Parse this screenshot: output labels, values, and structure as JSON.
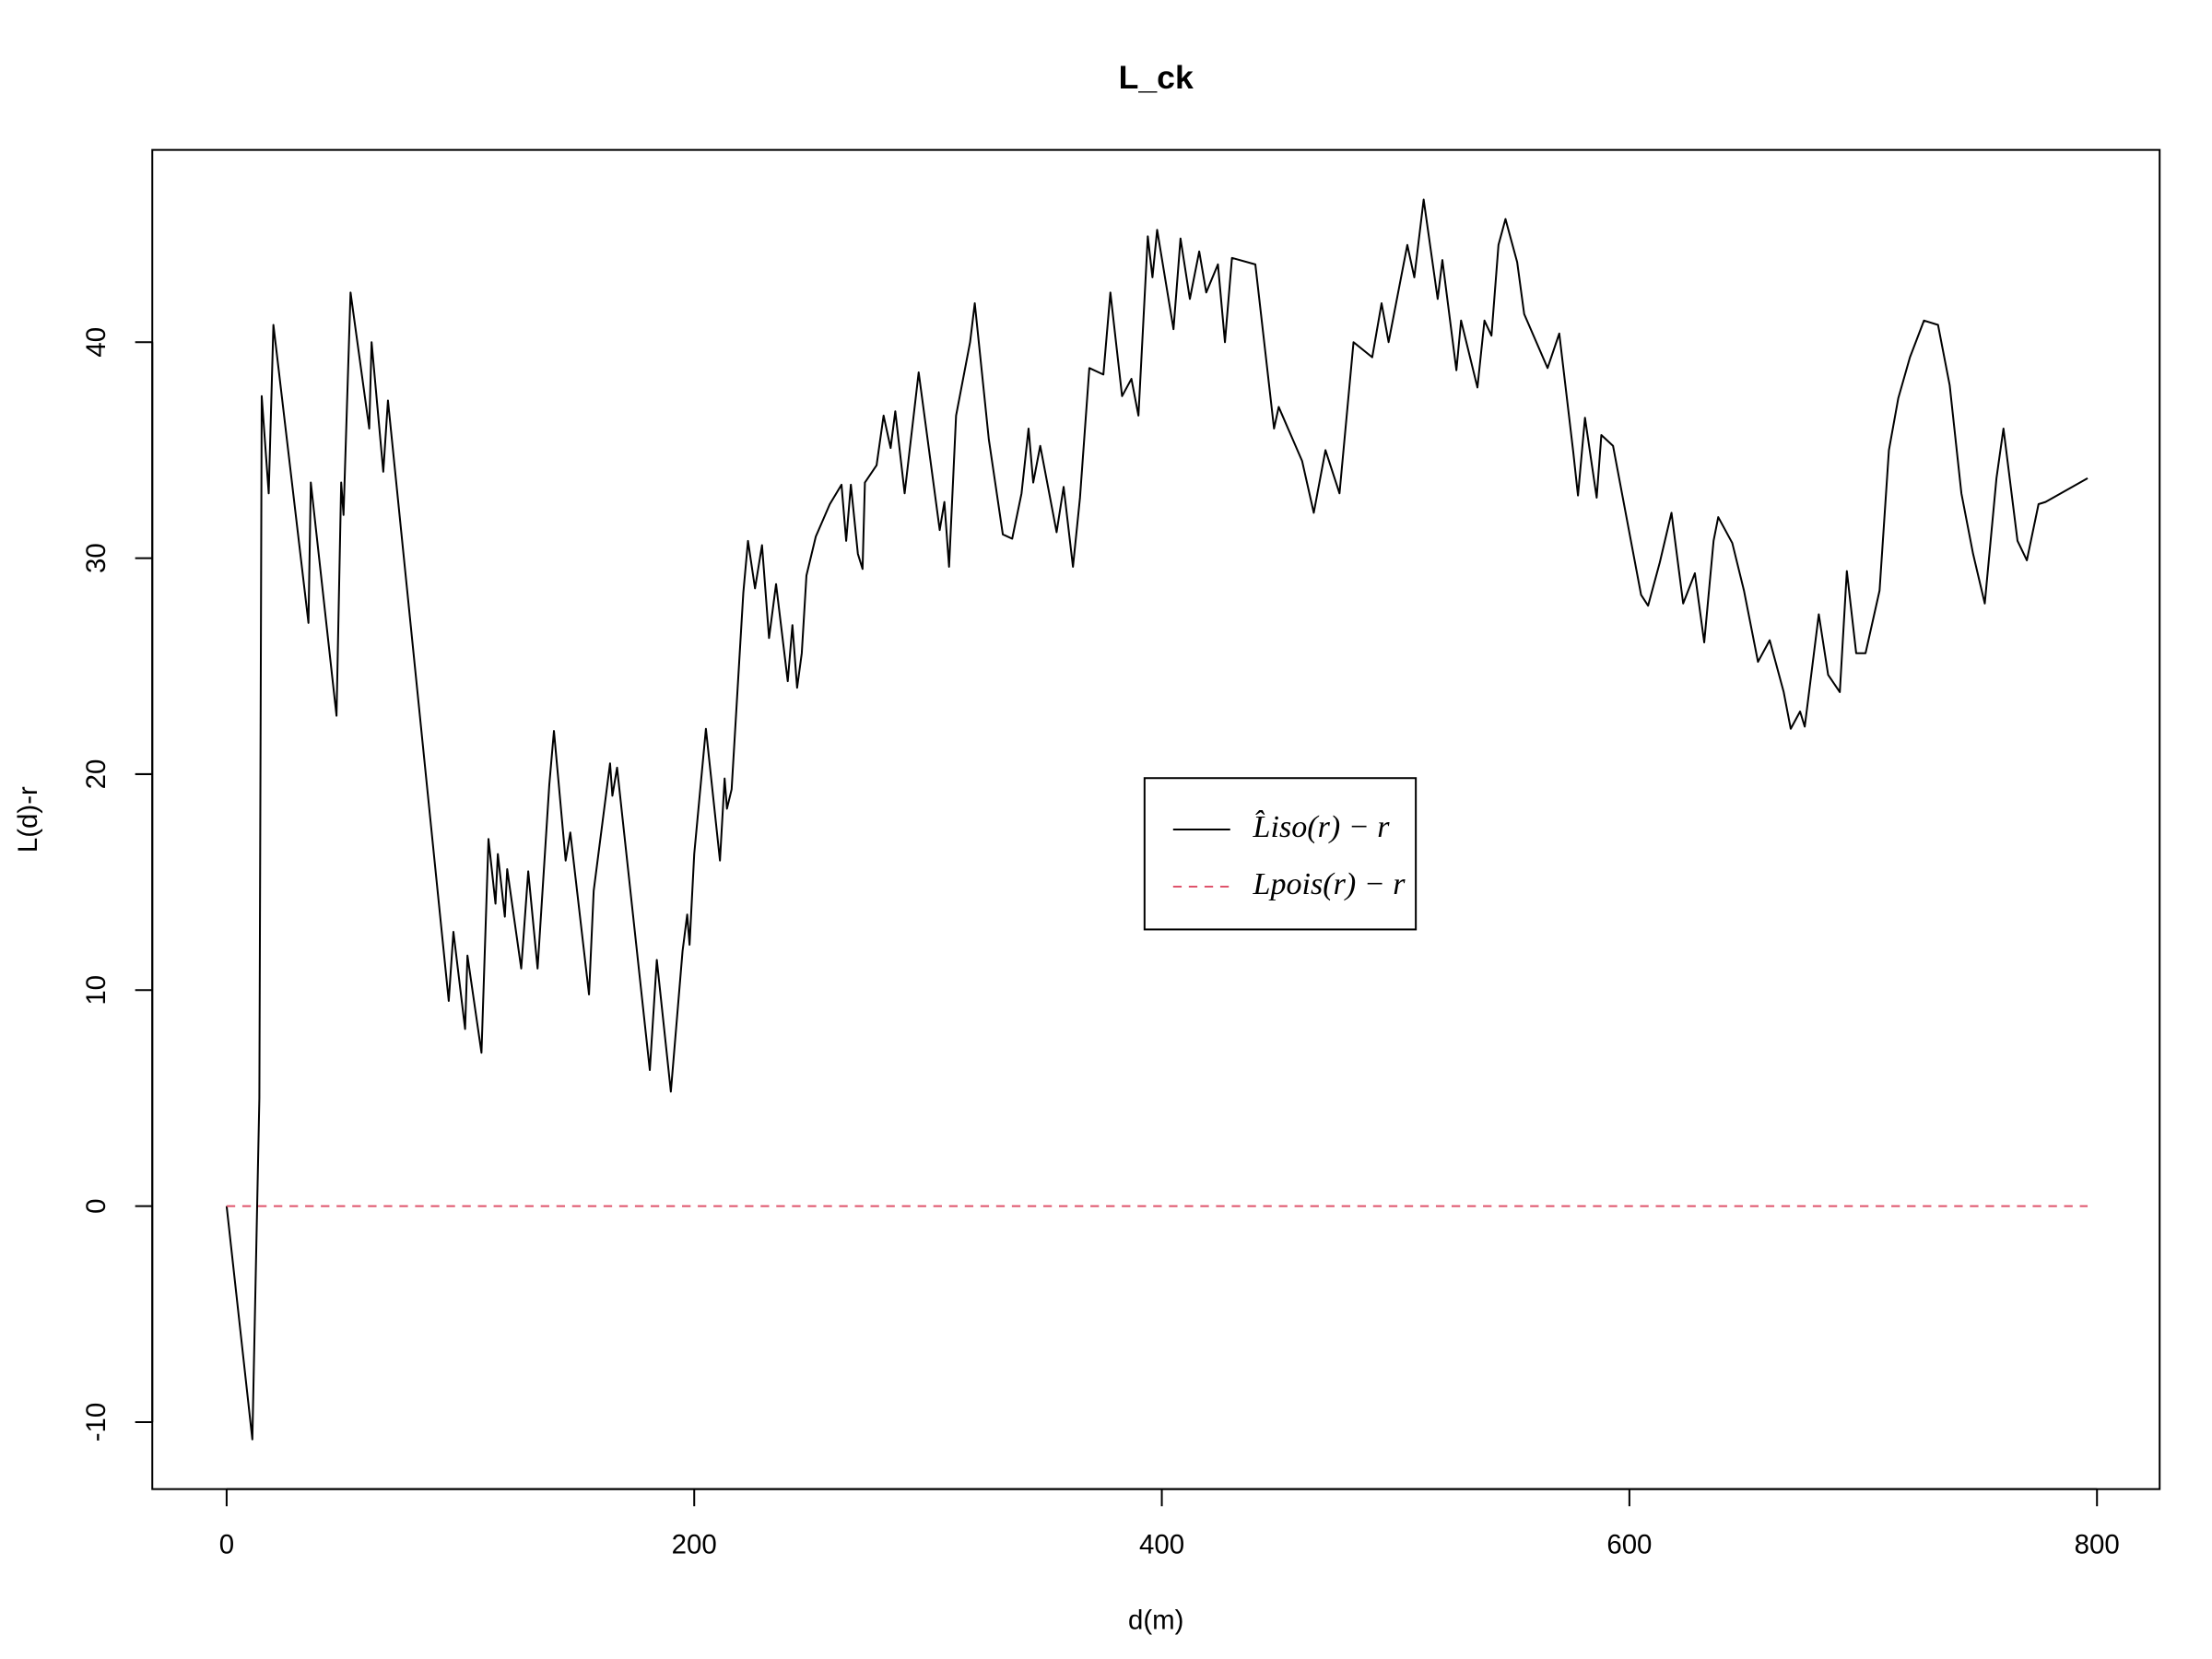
{
  "chart_data": {
    "type": "line",
    "title": "L_ck",
    "x_label": "d(m)",
    "y_label": "L(d)-r",
    "xlim": [
      -31.8,
      826.8
    ],
    "ylim": [
      -13.1,
      48.9
    ],
    "xticks": [
      0,
      200,
      400,
      600,
      800
    ],
    "yticks": [
      -10,
      0,
      10,
      20,
      30,
      40
    ],
    "grid": false,
    "legend": "center",
    "series": [
      {
        "name": "L̂iso(r) − r",
        "color": "#000000",
        "dash": false,
        "x": [
          0,
          11,
          14,
          15,
          18,
          20,
          35,
          36,
          47,
          49,
          50,
          53,
          61,
          62,
          67,
          69,
          95,
          97,
          102,
          103,
          109,
          112,
          115,
          116,
          119,
          120,
          126,
          129,
          133,
          138,
          140,
          145,
          147,
          155,
          157,
          164,
          165,
          167,
          181,
          184,
          190,
          195,
          197,
          198,
          200,
          205,
          211,
          213,
          214,
          216,
          221,
          223,
          226,
          229,
          232,
          235,
          240,
          242,
          244,
          246,
          248,
          252,
          258,
          263,
          265,
          267,
          270,
          272,
          273,
          278,
          281,
          284,
          286,
          290,
          296,
          305,
          307,
          309,
          312,
          318,
          320,
          326,
          332,
          336,
          340,
          343,
          345,
          348,
          355,
          358,
          362,
          365,
          369,
          375,
          378,
          383,
          387,
          390,
          394,
          396,
          398,
          405,
          408,
          412,
          416,
          419,
          424,
          427,
          430,
          440,
          448,
          450,
          460,
          465,
          470,
          476,
          482,
          490,
          494,
          497,
          505,
          508,
          512,
          518,
          520,
          526,
          528,
          535,
          538,
          541,
          544,
          547,
          552,
          555,
          565,
          570,
          576,
          578,
          581,
          586,
          588,
          593,
          605,
          608,
          613,
          618,
          623,
          628,
          632,
          636,
          638,
          644,
          649,
          655,
          660,
          666,
          669,
          673,
          675,
          681,
          685,
          690,
          693,
          697,
          701,
          707,
          711,
          715,
          720,
          726,
          732,
          737,
          742,
          747,
          752,
          757,
          760,
          766,
          770,
          775,
          778,
          796
        ],
        "values": [
          0,
          -10.8,
          5,
          37.5,
          33,
          40.8,
          27,
          33.5,
          22.7,
          33.5,
          32,
          42.3,
          36,
          40,
          34,
          37.3,
          9.5,
          12.7,
          8.2,
          11.6,
          7.1,
          17,
          14,
          16.3,
          13.4,
          15.6,
          11,
          15.5,
          11,
          19.5,
          22,
          16,
          17.3,
          9.8,
          14.6,
          20.5,
          19,
          20.3,
          6.3,
          11.4,
          5.3,
          11.8,
          13.5,
          12.1,
          16.3,
          22.1,
          16,
          19.8,
          18.4,
          19.3,
          28.4,
          30.8,
          28.6,
          30.6,
          26.3,
          28.8,
          24.3,
          26.9,
          24,
          25.6,
          29.2,
          31,
          32.5,
          33.4,
          30.8,
          33.4,
          30.2,
          29.5,
          33.5,
          34.3,
          36.6,
          35.1,
          36.8,
          33,
          38.6,
          31.3,
          32.6,
          29.6,
          36.6,
          40,
          41.8,
          35.5,
          31.1,
          30.9,
          33,
          36,
          33.5,
          35.2,
          31.2,
          33.3,
          29.6,
          32.8,
          38.8,
          38.5,
          42.3,
          37.5,
          38.3,
          36.6,
          44.9,
          43,
          45.2,
          40.6,
          44.8,
          42,
          44.2,
          42.3,
          43.6,
          40,
          43.9,
          43.6,
          36,
          37,
          34.5,
          32.1,
          35,
          33,
          40,
          39.3,
          41.8,
          40,
          44.5,
          43,
          46.6,
          42,
          43.8,
          38.7,
          41,
          37.9,
          41,
          40.3,
          44.5,
          45.7,
          43.7,
          41.3,
          38.8,
          40.4,
          34.9,
          32.9,
          36.5,
          32.8,
          35.7,
          35.2,
          28.3,
          27.8,
          29.8,
          32.1,
          27.9,
          29.3,
          26.1,
          30.8,
          31.9,
          30.7,
          28.5,
          25.2,
          26.2,
          23.8,
          22.1,
          22.9,
          22.2,
          27.4,
          24.6,
          23.8,
          29.4,
          25.6,
          25.6,
          28.5,
          35,
          37.4,
          39.3,
          41,
          40.8,
          38,
          33,
          30.2,
          27.9,
          33.7,
          36,
          30.8,
          29.9,
          32.5,
          32.6,
          33.7
        ]
      },
      {
        "name": "Lpois(r) − r",
        "color": "#df536b",
        "dash": true,
        "x": [
          0,
          796
        ],
        "values": [
          0,
          0
        ]
      }
    ]
  }
}
